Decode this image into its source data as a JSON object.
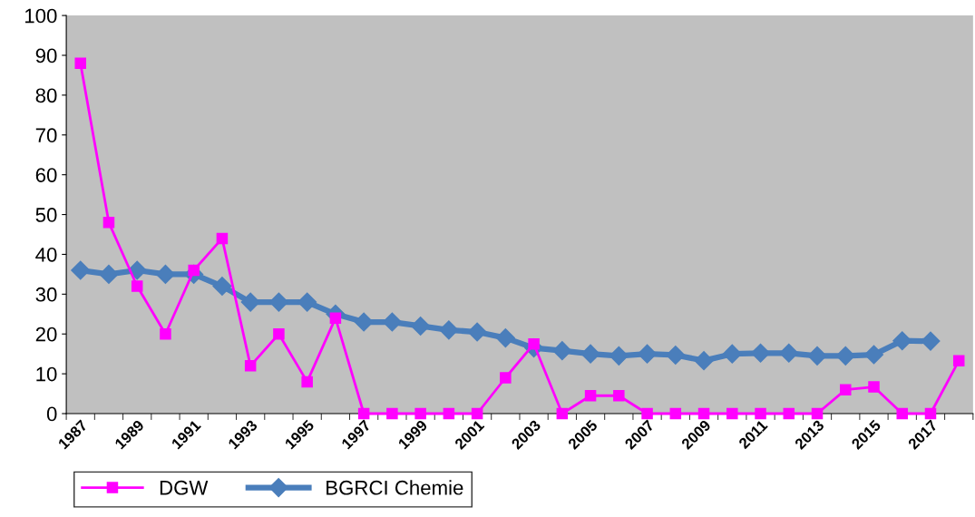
{
  "chart_data": {
    "type": "line",
    "categories": [
      "1987",
      null,
      "1989",
      null,
      "1991",
      null,
      "1993",
      null,
      "1995",
      null,
      "1997",
      null,
      "1999",
      null,
      "2001",
      null,
      "2003",
      null,
      "2005",
      null,
      "2007",
      null,
      "2009",
      null,
      "2011",
      null,
      "2013",
      null,
      "2015",
      null,
      "2017",
      null
    ],
    "series": [
      {
        "name": "DGW",
        "color": "#ff00ff",
        "marker": "square",
        "values": [
          88,
          48,
          32,
          20,
          36,
          44,
          12,
          20,
          8,
          24,
          0,
          0,
          0,
          0,
          0,
          9,
          17.5,
          0,
          4.5,
          4.5,
          0,
          0,
          0,
          0,
          0,
          0,
          0,
          6,
          6.7,
          0,
          0,
          13.3
        ]
      },
      {
        "name": "BGRCI Chemie",
        "color": "#4a7ebb",
        "marker": "diamond",
        "values": [
          36,
          35,
          36,
          35,
          35,
          32,
          28,
          28,
          28,
          25,
          23,
          23,
          22,
          21,
          20.5,
          19,
          16.5,
          15.8,
          15,
          14.5,
          15,
          14.7,
          13.3,
          15,
          15.2,
          15.2,
          14.5,
          14.5,
          14.8,
          18.3,
          18.2,
          null
        ]
      }
    ],
    "ylim": [
      0,
      100
    ],
    "yticks": [
      0,
      10,
      20,
      30,
      40,
      50,
      60,
      70,
      80,
      90,
      100
    ],
    "grid": false,
    "legend": "bottom"
  }
}
